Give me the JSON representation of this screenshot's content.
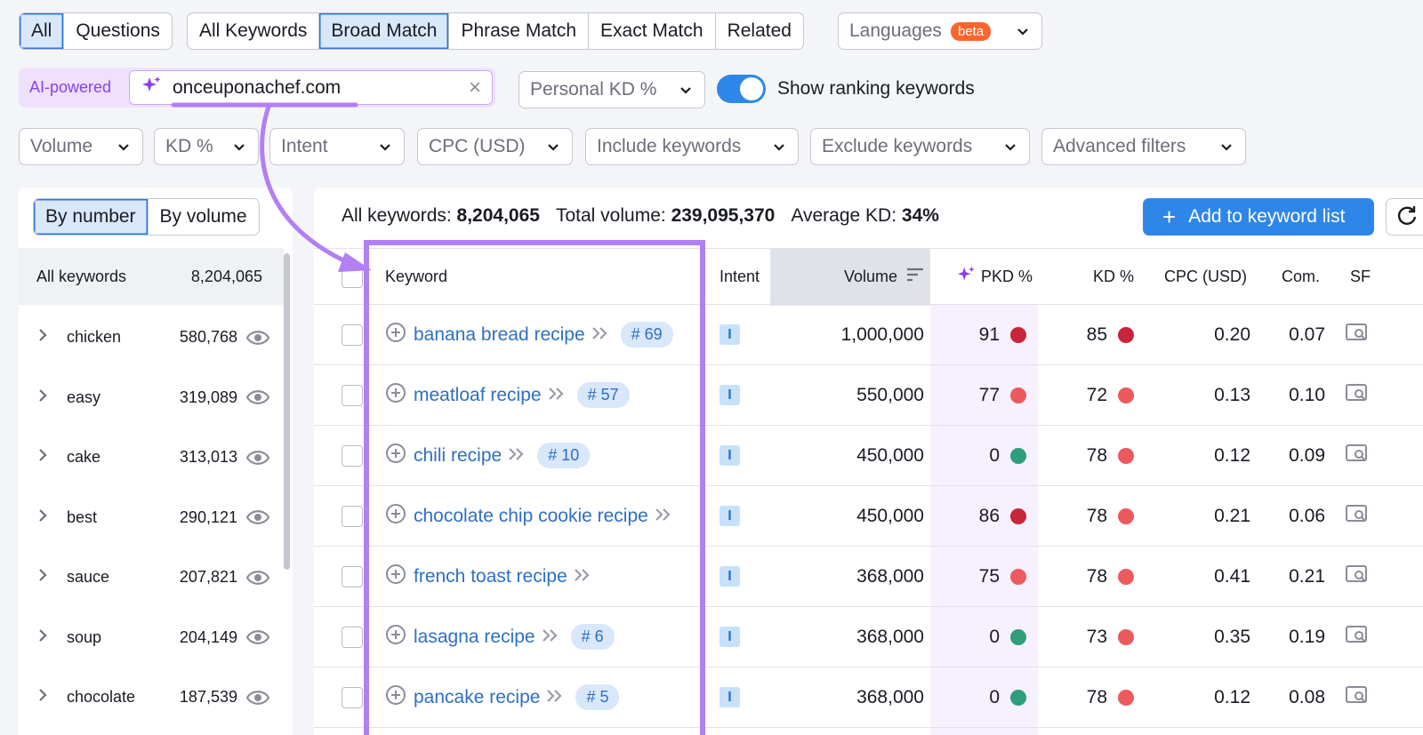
{
  "tabs_scope": [
    {
      "label": "All",
      "active": true
    },
    {
      "label": "Questions",
      "active": false
    }
  ],
  "tabs_match": [
    {
      "label": "All Keywords",
      "active": false
    },
    {
      "label": "Broad Match",
      "active": true
    },
    {
      "label": "Phrase Match",
      "active": false
    },
    {
      "label": "Exact Match",
      "active": false
    },
    {
      "label": "Related",
      "active": false
    }
  ],
  "languages": {
    "label": "Languages",
    "badge": "beta"
  },
  "ai": {
    "label": "AI-powered",
    "domain": "onceuponachef.com",
    "clear": "×"
  },
  "personal_kd": {
    "label": "Personal KD %"
  },
  "ranking_toggle": {
    "label": "Show ranking keywords",
    "on": true
  },
  "filters": [
    "Volume",
    "KD %",
    "Intent",
    "CPC (USD)",
    "Include keywords",
    "Exclude keywords",
    "Advanced filters"
  ],
  "left": {
    "segments": [
      {
        "label": "By number",
        "active": true
      },
      {
        "label": "By volume",
        "active": false
      }
    ],
    "all_label": "All keywords",
    "all_count": "8,204,065",
    "groups": [
      {
        "label": "chicken",
        "count": "580,768"
      },
      {
        "label": "easy",
        "count": "319,089"
      },
      {
        "label": "cake",
        "count": "313,013"
      },
      {
        "label": "best",
        "count": "290,121"
      },
      {
        "label": "sauce",
        "count": "207,821"
      },
      {
        "label": "soup",
        "count": "204,149"
      },
      {
        "label": "chocolate",
        "count": "187,539"
      }
    ]
  },
  "summary": {
    "all_label": "All keywords:",
    "all_value": "8,204,065",
    "vol_label": "Total volume:",
    "vol_value": "239,095,370",
    "kd_label": "Average KD:",
    "kd_value": "34%"
  },
  "add_button": {
    "plus": "+",
    "label": "Add to keyword list"
  },
  "columns": {
    "keyword": "Keyword",
    "intent": "Intent",
    "volume": "Volume",
    "pkd": "PKD %",
    "kd": "KD %",
    "cpc": "CPC (USD)",
    "com": "Com.",
    "sf": "SF"
  },
  "rows": [
    {
      "keyword": "banana bread recipe",
      "pos": "# 69",
      "intent": "I",
      "volume": "1,000,000",
      "pkd": "91",
      "pkd_color": "#c8243a",
      "kd": "85",
      "kd_color": "#c8243a",
      "cpc": "0.20",
      "com": "0.07"
    },
    {
      "keyword": "meatloaf recipe",
      "pos": "# 57",
      "intent": "I",
      "volume": "550,000",
      "pkd": "77",
      "pkd_color": "#ec5a5e",
      "kd": "72",
      "kd_color": "#ec5a5e",
      "cpc": "0.13",
      "com": "0.10"
    },
    {
      "keyword": "chili recipe",
      "pos": "# 10",
      "intent": "I",
      "volume": "450,000",
      "pkd": "0",
      "pkd_color": "#2e9e7c",
      "kd": "78",
      "kd_color": "#ec5a5e",
      "cpc": "0.12",
      "com": "0.09"
    },
    {
      "keyword": "chocolate chip cookie recipe",
      "pos": "",
      "intent": "I",
      "volume": "450,000",
      "pkd": "86",
      "pkd_color": "#c8243a",
      "kd": "78",
      "kd_color": "#ec5a5e",
      "cpc": "0.21",
      "com": "0.06"
    },
    {
      "keyword": "french toast recipe",
      "pos": "",
      "intent": "I",
      "volume": "368,000",
      "pkd": "75",
      "pkd_color": "#ec5a5e",
      "kd": "78",
      "kd_color": "#ec5a5e",
      "cpc": "0.41",
      "com": "0.21"
    },
    {
      "keyword": "lasagna recipe",
      "pos": "# 6",
      "intent": "I",
      "volume": "368,000",
      "pkd": "0",
      "pkd_color": "#2e9e7c",
      "kd": "73",
      "kd_color": "#ec5a5e",
      "cpc": "0.35",
      "com": "0.19"
    },
    {
      "keyword": "pancake recipe",
      "pos": "# 5",
      "intent": "I",
      "volume": "368,000",
      "pkd": "0",
      "pkd_color": "#2e9e7c",
      "kd": "78",
      "kd_color": "#ec5a5e",
      "cpc": "0.12",
      "com": "0.08"
    }
  ],
  "colors": {
    "accent": "#2e87e8",
    "highlight": "#b27ff5",
    "ai": "#8b3df3"
  }
}
